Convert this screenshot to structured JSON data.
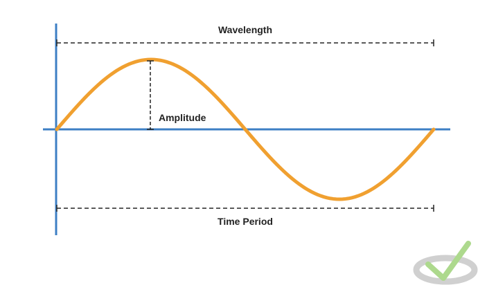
{
  "labels": {
    "wavelength": "Wavelength",
    "amplitude": "Amplitude",
    "time_period": "Time Period"
  },
  "colors": {
    "axis": "#3d7fc4",
    "wave": "#f0a030",
    "dimension": "#222222",
    "watermark_dark": "#c8c8c8",
    "watermark_check": "#9fd37a"
  },
  "icons": {
    "watermark": "checkmark-logo-icon"
  }
}
